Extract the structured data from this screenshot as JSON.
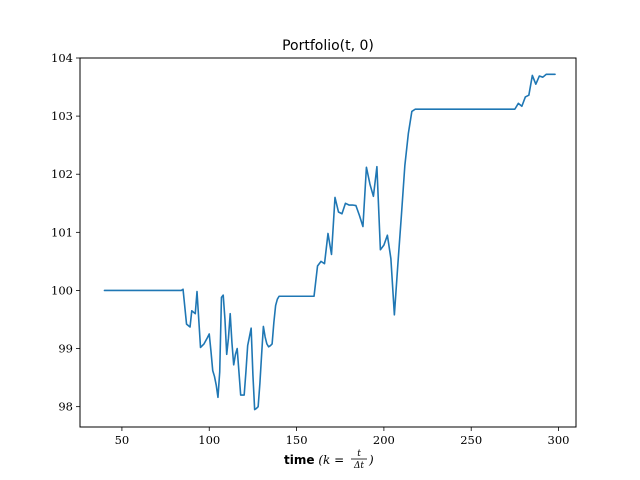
{
  "chart_data": {
    "type": "line",
    "title": "Portfolio(t, 0)",
    "xlabel": {
      "bold": "time",
      "math_prefix": "(k = ",
      "frac_num": "t",
      "frac_den": "Δt",
      "math_suffix": ")"
    },
    "ylabel": "",
    "xlim": [
      26,
      310
    ],
    "ylim": [
      97.65,
      104.0
    ],
    "xticks": [
      50,
      100,
      150,
      200,
      250,
      300
    ],
    "yticks": [
      98,
      99,
      100,
      101,
      102,
      103,
      104
    ],
    "line_color": "#1f77b4",
    "grid": false,
    "series": [
      {
        "x": [
          40,
          50,
          60,
          70,
          80,
          84,
          85,
          87,
          89,
          90,
          92,
          93,
          95,
          97,
          99,
          100,
          101,
          102,
          103,
          104,
          105,
          106,
          107,
          108,
          109,
          110,
          111,
          112,
          113,
          114,
          115,
          116,
          117,
          118,
          119,
          120,
          121,
          122,
          123,
          124,
          125,
          126,
          127,
          128,
          129,
          130,
          131,
          132,
          133,
          134,
          135,
          136,
          137,
          138,
          139,
          140,
          141,
          142,
          143,
          144,
          145,
          150,
          155,
          160,
          162,
          164,
          166,
          168,
          170,
          172,
          174,
          176,
          178,
          180,
          182,
          184,
          186,
          188,
          190,
          192,
          194,
          196,
          198,
          200,
          202,
          204,
          206,
          208,
          210,
          212,
          214,
          216,
          218,
          220,
          230,
          240,
          250,
          260,
          270,
          275,
          277,
          279,
          281,
          283,
          285,
          287,
          289,
          291,
          293,
          295,
          298
        ],
        "y": [
          100.0,
          100.0,
          100.0,
          100.0,
          100.0,
          100.0,
          100.02,
          99.42,
          99.37,
          99.65,
          99.6,
          99.98,
          99.02,
          99.08,
          99.19,
          99.25,
          98.95,
          98.62,
          98.52,
          98.37,
          98.16,
          98.6,
          99.88,
          99.92,
          99.5,
          98.9,
          99.18,
          99.6,
          99.1,
          98.72,
          98.9,
          99.0,
          98.6,
          98.2,
          98.2,
          98.2,
          98.6,
          99.05,
          99.2,
          99.35,
          98.55,
          97.95,
          97.97,
          98.0,
          98.4,
          98.9,
          99.38,
          99.2,
          99.08,
          99.03,
          99.05,
          99.08,
          99.45,
          99.74,
          99.85,
          99.9,
          99.9,
          99.9,
          99.9,
          99.9,
          99.9,
          99.9,
          99.9,
          99.9,
          100.42,
          100.5,
          100.46,
          100.98,
          100.62,
          101.6,
          101.35,
          101.32,
          101.5,
          101.47,
          101.47,
          101.46,
          101.29,
          101.1,
          102.12,
          101.83,
          101.62,
          102.13,
          100.7,
          100.78,
          100.95,
          100.55,
          99.58,
          100.45,
          101.28,
          102.15,
          102.7,
          103.08,
          103.12,
          103.12,
          103.12,
          103.12,
          103.12,
          103.12,
          103.12,
          103.12,
          103.22,
          103.17,
          103.33,
          103.36,
          103.7,
          103.55,
          103.69,
          103.67,
          103.72,
          103.72,
          103.72
        ]
      }
    ]
  }
}
